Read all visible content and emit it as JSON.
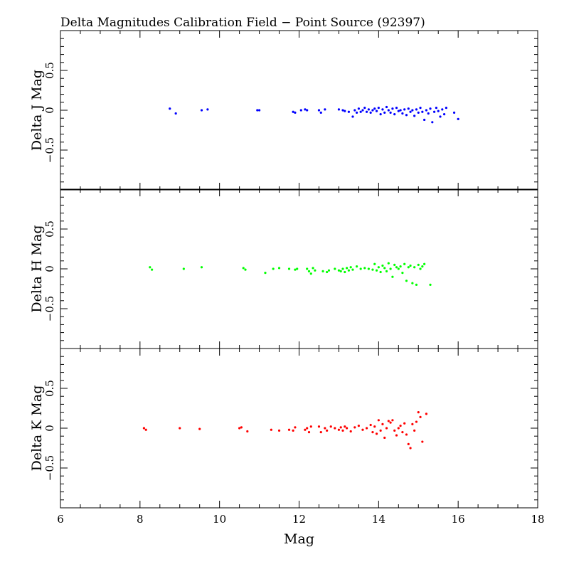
{
  "chart_data": {
    "type": "scatter",
    "title": "Delta Magnitudes Calibration Field − Point Source (92397)",
    "xlabel": "Mag",
    "xlim": [
      6,
      18
    ],
    "x_ticks": [
      6,
      8,
      10,
      12,
      14,
      16,
      18
    ],
    "x_tick_labels": [
      "6",
      "8",
      "10",
      "12",
      "14",
      "16",
      "18"
    ],
    "ylim": [
      -1,
      1
    ],
    "y_tick_labels": [
      "−0.5",
      "0",
      "0.5"
    ],
    "y_ticks": [
      -0.5,
      0,
      0.5
    ],
    "panels": [
      {
        "ylabel": "Delta J Mag",
        "color": "#0000ff",
        "points": [
          [
            8.75,
            0.02
          ],
          [
            8.9,
            -0.04
          ],
          [
            9.55,
            0.0
          ],
          [
            9.7,
            0.01
          ],
          [
            10.95,
            0.0
          ],
          [
            11.0,
            0.0
          ],
          [
            11.85,
            -0.02
          ],
          [
            11.9,
            -0.03
          ],
          [
            12.05,
            0.0
          ],
          [
            12.15,
            0.01
          ],
          [
            12.2,
            0.0
          ],
          [
            12.5,
            0.0
          ],
          [
            12.55,
            -0.03
          ],
          [
            12.65,
            0.01
          ],
          [
            13.0,
            0.01
          ],
          [
            13.1,
            0.0
          ],
          [
            13.15,
            -0.01
          ],
          [
            13.25,
            -0.02
          ],
          [
            13.35,
            -0.08
          ],
          [
            13.4,
            0.0
          ],
          [
            13.45,
            -0.03
          ],
          [
            13.5,
            0.02
          ],
          [
            13.55,
            -0.02
          ],
          [
            13.6,
            0.0
          ],
          [
            13.65,
            0.03
          ],
          [
            13.7,
            -0.02
          ],
          [
            13.75,
            0.01
          ],
          [
            13.8,
            -0.03
          ],
          [
            13.85,
            0.0
          ],
          [
            13.9,
            0.02
          ],
          [
            13.95,
            -0.01
          ],
          [
            14.0,
            0.03
          ],
          [
            14.05,
            -0.05
          ],
          [
            14.1,
            0.01
          ],
          [
            14.15,
            -0.03
          ],
          [
            14.2,
            0.04
          ],
          [
            14.25,
            0.0
          ],
          [
            14.3,
            -0.03
          ],
          [
            14.35,
            0.02
          ],
          [
            14.4,
            -0.05
          ],
          [
            14.45,
            0.03
          ],
          [
            14.5,
            -0.01
          ],
          [
            14.55,
            0.0
          ],
          [
            14.6,
            -0.04
          ],
          [
            14.65,
            0.01
          ],
          [
            14.7,
            -0.06
          ],
          [
            14.75,
            0.02
          ],
          [
            14.8,
            -0.02
          ],
          [
            14.85,
            0.0
          ],
          [
            14.9,
            -0.07
          ],
          [
            14.95,
            0.01
          ],
          [
            15.0,
            -0.03
          ],
          [
            15.05,
            0.03
          ],
          [
            15.1,
            -0.02
          ],
          [
            15.15,
            -0.12
          ],
          [
            15.2,
            0.0
          ],
          [
            15.25,
            -0.04
          ],
          [
            15.3,
            0.02
          ],
          [
            15.35,
            -0.15
          ],
          [
            15.4,
            -0.02
          ],
          [
            15.45,
            0.03
          ],
          [
            15.5,
            -0.01
          ],
          [
            15.55,
            -0.08
          ],
          [
            15.6,
            0.01
          ],
          [
            15.65,
            -0.05
          ],
          [
            15.7,
            0.03
          ],
          [
            15.9,
            -0.03
          ],
          [
            16.0,
            -0.11
          ]
        ]
      },
      {
        "ylabel": "Delta H Mag",
        "color": "#00ff00",
        "points": [
          [
            8.25,
            0.02
          ],
          [
            8.3,
            -0.01
          ],
          [
            9.1,
            0.0
          ],
          [
            9.55,
            0.02
          ],
          [
            10.6,
            0.01
          ],
          [
            10.65,
            -0.01
          ],
          [
            11.15,
            -0.05
          ],
          [
            11.35,
            0.0
          ],
          [
            11.5,
            0.01
          ],
          [
            11.75,
            0.0
          ],
          [
            11.9,
            -0.01
          ],
          [
            11.95,
            0.0
          ],
          [
            12.2,
            0.0
          ],
          [
            12.25,
            -0.03
          ],
          [
            12.3,
            -0.06
          ],
          [
            12.35,
            0.01
          ],
          [
            12.4,
            -0.02
          ],
          [
            12.6,
            -0.03
          ],
          [
            12.7,
            -0.04
          ],
          [
            12.75,
            -0.02
          ],
          [
            12.9,
            0.0
          ],
          [
            13.0,
            -0.02
          ],
          [
            13.05,
            -0.03
          ],
          [
            13.1,
            0.0
          ],
          [
            13.15,
            -0.04
          ],
          [
            13.2,
            0.01
          ],
          [
            13.25,
            -0.02
          ],
          [
            13.3,
            0.02
          ],
          [
            13.35,
            -0.01
          ],
          [
            13.45,
            0.03
          ],
          [
            13.55,
            0.0
          ],
          [
            13.65,
            0.01
          ],
          [
            13.75,
            0.0
          ],
          [
            13.85,
            -0.01
          ],
          [
            13.9,
            0.06
          ],
          [
            13.95,
            -0.02
          ],
          [
            14.0,
            0.02
          ],
          [
            14.05,
            -0.04
          ],
          [
            14.1,
            0.04
          ],
          [
            14.15,
            0.01
          ],
          [
            14.2,
            -0.03
          ],
          [
            14.25,
            0.07
          ],
          [
            14.3,
            0.0
          ],
          [
            14.35,
            -0.1
          ],
          [
            14.4,
            0.05
          ],
          [
            14.45,
            0.02
          ],
          [
            14.5,
            0.0
          ],
          [
            14.55,
            0.03
          ],
          [
            14.6,
            -0.05
          ],
          [
            14.65,
            0.06
          ],
          [
            14.7,
            -0.15
          ],
          [
            14.75,
            0.02
          ],
          [
            14.8,
            0.04
          ],
          [
            14.85,
            -0.18
          ],
          [
            14.9,
            0.02
          ],
          [
            14.95,
            -0.2
          ],
          [
            15.0,
            0.05
          ],
          [
            15.05,
            0.0
          ],
          [
            15.1,
            0.03
          ],
          [
            15.15,
            0.06
          ],
          [
            15.3,
            -0.2
          ]
        ]
      },
      {
        "ylabel": "Delta K Mag",
        "color": "#ff0000",
        "points": [
          [
            8.1,
            0.0
          ],
          [
            8.15,
            -0.02
          ],
          [
            9.0,
            0.0
          ],
          [
            9.5,
            -0.01
          ],
          [
            10.5,
            0.0
          ],
          [
            10.55,
            0.01
          ],
          [
            10.7,
            -0.04
          ],
          [
            11.3,
            -0.02
          ],
          [
            11.5,
            -0.03
          ],
          [
            11.75,
            -0.02
          ],
          [
            11.85,
            -0.03
          ],
          [
            11.9,
            0.01
          ],
          [
            12.15,
            -0.02
          ],
          [
            12.2,
            0.0
          ],
          [
            12.25,
            -0.05
          ],
          [
            12.3,
            0.02
          ],
          [
            12.5,
            0.02
          ],
          [
            12.55,
            -0.05
          ],
          [
            12.65,
            0.0
          ],
          [
            12.7,
            -0.03
          ],
          [
            12.8,
            0.02
          ],
          [
            12.9,
            0.0
          ],
          [
            13.0,
            -0.02
          ],
          [
            13.05,
            0.01
          ],
          [
            13.1,
            -0.03
          ],
          [
            13.15,
            0.02
          ],
          [
            13.2,
            0.0
          ],
          [
            13.3,
            -0.04
          ],
          [
            13.4,
            0.01
          ],
          [
            13.5,
            0.03
          ],
          [
            13.6,
            -0.02
          ],
          [
            13.7,
            0.0
          ],
          [
            13.8,
            0.04
          ],
          [
            13.85,
            -0.05
          ],
          [
            13.9,
            0.02
          ],
          [
            13.95,
            -0.07
          ],
          [
            14.0,
            0.1
          ],
          [
            14.05,
            -0.03
          ],
          [
            14.1,
            0.05
          ],
          [
            14.15,
            -0.12
          ],
          [
            14.2,
            0.0
          ],
          [
            14.25,
            0.09
          ],
          [
            14.3,
            0.07
          ],
          [
            14.35,
            0.1
          ],
          [
            14.4,
            -0.03
          ],
          [
            14.45,
            -0.09
          ],
          [
            14.5,
            0.0
          ],
          [
            14.55,
            0.03
          ],
          [
            14.6,
            -0.05
          ],
          [
            14.65,
            0.06
          ],
          [
            14.7,
            -0.08
          ],
          [
            14.75,
            -0.2
          ],
          [
            14.8,
            -0.25
          ],
          [
            14.85,
            0.05
          ],
          [
            14.9,
            -0.03
          ],
          [
            14.95,
            0.08
          ],
          [
            15.0,
            0.2
          ],
          [
            15.05,
            0.14
          ],
          [
            15.1,
            -0.17
          ],
          [
            15.2,
            0.18
          ]
        ]
      }
    ]
  }
}
